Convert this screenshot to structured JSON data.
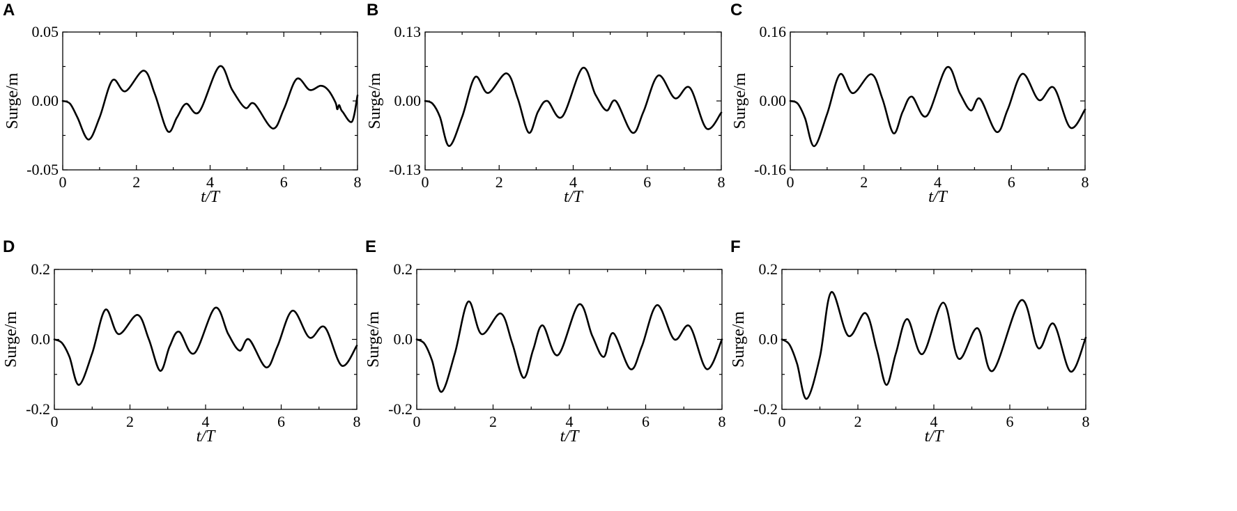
{
  "chart_data": [
    {
      "panel": "A",
      "type": "line",
      "xlabel": "t/T",
      "ylabel": "Surge/m",
      "xlim": [
        0,
        8
      ],
      "ylim": [
        -0.05,
        0.05
      ],
      "xticks": [
        "0",
        "2",
        "4",
        "6",
        "8"
      ],
      "yticks": [
        "-0.05",
        "0.00",
        "0.05"
      ],
      "series": [
        {
          "x": [
            0,
            0.2,
            0.4,
            0.7,
            1.0,
            1.35,
            1.7,
            2.2,
            2.5,
            2.85,
            3.1,
            3.35,
            3.7,
            4.25,
            4.6,
            4.95,
            5.2,
            5.7,
            6.0,
            6.35,
            6.7,
            7.0,
            7.2,
            7.4,
            7.45,
            7.5,
            7.55,
            7.6,
            7.85,
            8.0
          ],
          "y": [
            0.0,
            -0.002,
            -0.012,
            -0.028,
            -0.012,
            0.015,
            0.007,
            0.022,
            0.005,
            -0.022,
            -0.012,
            -0.002,
            -0.008,
            0.025,
            0.008,
            -0.005,
            -0.002,
            -0.02,
            -0.006,
            0.016,
            0.008,
            0.011,
            0.008,
            -0.001,
            -0.006,
            -0.003,
            -0.006,
            -0.008,
            -0.015,
            0.004
          ]
        }
      ]
    },
    {
      "panel": "B",
      "type": "line",
      "xlabel": "t/T",
      "ylabel": "Surge/m",
      "xlim": [
        0,
        8
      ],
      "ylim": [
        -0.13,
        0.13
      ],
      "xticks": [
        "0",
        "2",
        "4",
        "6",
        "8"
      ],
      "yticks": [
        "-0.13",
        "0.00",
        "0.13"
      ],
      "series": [
        {
          "x": [
            0,
            0.2,
            0.4,
            0.65,
            1.0,
            1.35,
            1.7,
            2.2,
            2.5,
            2.8,
            3.05,
            3.3,
            3.7,
            4.25,
            4.6,
            4.9,
            5.15,
            5.6,
            5.9,
            6.3,
            6.75,
            7.15,
            7.6,
            8.0
          ],
          "y": [
            0.0,
            -0.005,
            -0.03,
            -0.085,
            -0.03,
            0.045,
            0.015,
            0.052,
            0.005,
            -0.06,
            -0.02,
            0.0,
            -0.03,
            0.062,
            0.012,
            -0.018,
            0.0,
            -0.06,
            -0.02,
            0.048,
            0.005,
            0.025,
            -0.052,
            -0.022
          ]
        }
      ]
    },
    {
      "panel": "C",
      "type": "line",
      "xlabel": "t/T",
      "ylabel": "Surge/m",
      "xlim": [
        0,
        8
      ],
      "ylim": [
        -0.16,
        0.16
      ],
      "xticks": [
        "0",
        "2",
        "4",
        "6",
        "8"
      ],
      "yticks": [
        "-0.16",
        "0.00",
        "0.16"
      ],
      "series": [
        {
          "x": [
            0,
            0.2,
            0.4,
            0.65,
            1.0,
            1.35,
            1.7,
            2.2,
            2.5,
            2.8,
            3.05,
            3.3,
            3.7,
            4.25,
            4.6,
            4.9,
            5.15,
            5.6,
            5.9,
            6.3,
            6.75,
            7.15,
            7.6,
            8.0
          ],
          "y": [
            0.0,
            -0.006,
            -0.04,
            -0.105,
            -0.03,
            0.062,
            0.018,
            0.062,
            0.005,
            -0.075,
            -0.025,
            0.01,
            -0.035,
            0.078,
            0.018,
            -0.022,
            0.005,
            -0.072,
            -0.02,
            0.063,
            0.002,
            0.031,
            -0.062,
            -0.02
          ]
        }
      ]
    },
    {
      "panel": "D",
      "type": "line",
      "xlabel": "t/T",
      "ylabel": "Surge/m",
      "xlim": [
        0,
        8
      ],
      "ylim": [
        -0.2,
        0.2
      ],
      "xticks": [
        "0",
        "2",
        "4",
        "6",
        "8"
      ],
      "yticks": [
        "-0.2",
        "0.0",
        "0.2"
      ],
      "series": [
        {
          "x": [
            0,
            0.2,
            0.4,
            0.65,
            1.0,
            1.35,
            1.7,
            2.2,
            2.5,
            2.8,
            3.05,
            3.3,
            3.7,
            4.25,
            4.6,
            4.9,
            5.15,
            5.6,
            5.9,
            6.3,
            6.75,
            7.15,
            7.6,
            8.0
          ],
          "y": [
            0.0,
            -0.01,
            -0.05,
            -0.13,
            -0.04,
            0.085,
            0.015,
            0.07,
            0.0,
            -0.09,
            -0.02,
            0.022,
            -0.04,
            0.09,
            0.015,
            -0.032,
            0.0,
            -0.08,
            -0.02,
            0.082,
            0.005,
            0.035,
            -0.075,
            -0.018
          ]
        }
      ]
    },
    {
      "panel": "E",
      "type": "line",
      "xlabel": "t/T",
      "ylabel": "Surge/m",
      "xlim": [
        0,
        8
      ],
      "ylim": [
        -0.2,
        0.2
      ],
      "xticks": [
        "0",
        "2",
        "4",
        "6",
        "8"
      ],
      "yticks": [
        "-0.2",
        "0.0",
        "0.2"
      ],
      "series": [
        {
          "x": [
            0,
            0.2,
            0.4,
            0.65,
            1.0,
            1.35,
            1.7,
            2.2,
            2.5,
            2.8,
            3.05,
            3.3,
            3.7,
            4.25,
            4.6,
            4.9,
            5.15,
            5.6,
            5.9,
            6.3,
            6.75,
            7.15,
            7.6,
            8.0
          ],
          "y": [
            0.0,
            -0.012,
            -0.06,
            -0.15,
            -0.04,
            0.108,
            0.015,
            0.074,
            -0.01,
            -0.11,
            -0.03,
            0.04,
            -0.045,
            0.1,
            0.01,
            -0.05,
            0.018,
            -0.085,
            -0.02,
            0.098,
            0.0,
            0.038,
            -0.085,
            0.0
          ]
        }
      ]
    },
    {
      "panel": "F",
      "type": "line",
      "xlabel": "t/T",
      "ylabel": "Surge/m",
      "xlim": [
        0,
        8
      ],
      "ylim": [
        -0.2,
        0.2
      ],
      "xticks": [
        "0",
        "2",
        "4",
        "6",
        "8"
      ],
      "yticks": [
        "-0.2",
        "0.0",
        "0.2"
      ],
      "series": [
        {
          "x": [
            0,
            0.2,
            0.4,
            0.65,
            1.0,
            1.3,
            1.75,
            2.2,
            2.5,
            2.75,
            3.0,
            3.3,
            3.7,
            4.25,
            4.65,
            5.15,
            5.55,
            6.3,
            6.75,
            7.15,
            7.6,
            8.0
          ],
          "y": [
            0.0,
            -0.015,
            -0.07,
            -0.17,
            -0.05,
            0.135,
            0.01,
            0.075,
            -0.03,
            -0.13,
            -0.04,
            0.058,
            -0.042,
            0.105,
            -0.055,
            0.032,
            -0.09,
            0.112,
            -0.025,
            0.045,
            -0.092,
            0.005
          ]
        }
      ]
    }
  ]
}
